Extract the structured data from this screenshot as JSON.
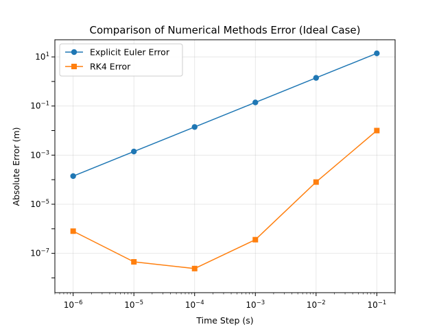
{
  "chart_data": {
    "type": "line",
    "title": "Comparison of Numerical Methods Error (Ideal Case)",
    "xlabel": "Time Step (s)",
    "ylabel": "Absolute Error (m)",
    "xscale": "log",
    "yscale": "log",
    "xlim": [
      5e-07,
      0.2
    ],
    "ylim": [
      2.5e-09,
      50.0
    ],
    "x": [
      1e-06,
      1e-05,
      0.0001,
      0.001,
      0.01,
      0.1
    ],
    "x_tick_labels": [
      {
        "base": "10",
        "exp": "−6"
      },
      {
        "base": "10",
        "exp": "−5"
      },
      {
        "base": "10",
        "exp": "−4"
      },
      {
        "base": "10",
        "exp": "−3"
      },
      {
        "base": "10",
        "exp": "−2"
      },
      {
        "base": "10",
        "exp": "−1"
      }
    ],
    "y_tick_labels": [
      {
        "base": "10",
        "exp": "−7",
        "value": 1e-07
      },
      {
        "base": "10",
        "exp": "−5",
        "value": 1e-05
      },
      {
        "base": "10",
        "exp": "−3",
        "value": 0.001
      },
      {
        "base": "10",
        "exp": "−1",
        "value": 0.1
      },
      {
        "base": "10",
        "exp": "1",
        "value": 10
      }
    ],
    "grid": true,
    "legend_position": "top-left",
    "series": [
      {
        "name": "Explicit Euler Error",
        "color": "#1f77b4",
        "marker": "circle",
        "values": [
          0.00014,
          0.0014,
          0.014,
          0.14,
          1.4,
          14
        ]
      },
      {
        "name": "RK4 Error",
        "color": "#ff7f0e",
        "marker": "square",
        "values": [
          8e-07,
          4.5e-08,
          2.4e-08,
          3.6e-07,
          8e-05,
          0.01
        ]
      }
    ]
  }
}
